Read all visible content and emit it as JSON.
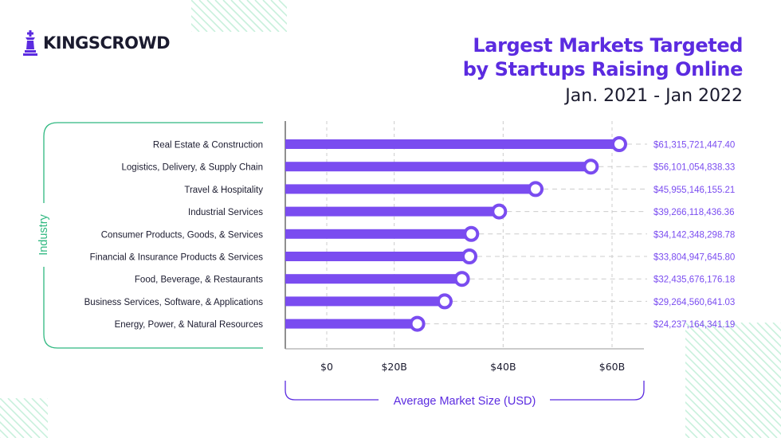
{
  "brand": {
    "name": "KINGSCROWD",
    "logo_icon": "chess-king-icon"
  },
  "header": {
    "title_line1": "Largest Markets Targeted",
    "title_line2": "by Startups Raising Online",
    "subtitle": "Jan. 2021 - Jan 2022"
  },
  "colors": {
    "accent": "#7a4cf0",
    "title": "#5b2be0",
    "teal": "#2fb880",
    "text": "#1b1b2f",
    "grid": "#cccccc"
  },
  "chart_data": {
    "type": "bar",
    "style": "lollipop",
    "orientation": "horizontal",
    "title": "Largest Markets Targeted by Startups Raising Online",
    "subtitle": "Jan. 2021 - Jan 2022",
    "xlabel": "Average Market Size (USD)",
    "ylabel": "Industry",
    "xlim": [
      0,
      65000000000
    ],
    "ticks": [
      {
        "value": 0,
        "label": "$0"
      },
      {
        "value": 20000000000,
        "label": "$20B"
      },
      {
        "value": 40000000000,
        "label": "$40B"
      },
      {
        "value": 60000000000,
        "label": "$60B"
      }
    ],
    "categories": [
      "Real Estate & Construction",
      "Logistics, Delivery, & Supply Chain",
      "Travel & Hospitality",
      "Industrial Services",
      "Consumer Products, Goods, & Services",
      "Financial & Insurance Products & Services",
      "Food, Beverage, & Restaurants",
      "Business Services, Software, & Applications",
      "Energy, Power, & Natural Resources"
    ],
    "values": [
      61315721447.4,
      56101054838.33,
      45955146155.21,
      39266118436.36,
      34142348298.78,
      33804947645.8,
      32435676176.18,
      29264560641.03,
      24237164341.19
    ],
    "value_labels": [
      "$61,315,721,447.40",
      "$56,101,054,838.33",
      "$45,955,146,155.21",
      "$39,266,118,436.36",
      "$34,142,348,298.78",
      "$33,804,947,645.80",
      "$32,435,676,176.18",
      "$29,264,560,641.03",
      "$24,237,164,341.19"
    ],
    "grid": true
  }
}
